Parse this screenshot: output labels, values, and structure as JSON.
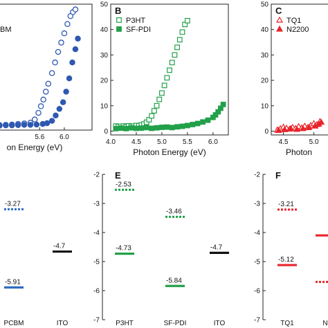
{
  "chart_data": [
    {
      "id": "A",
      "type": "scatter",
      "panel_label": "",
      "xlabel": "on Energy (eV)",
      "ylabel": "",
      "xlim": [
        4.9,
        6.45
      ],
      "ylim": [
        -1.5,
        46
      ],
      "xticks": [
        "5.6",
        "6.0"
      ],
      "xtick_values": [
        5.6,
        6.0
      ],
      "legend": [
        "BM"
      ],
      "series": [
        {
          "marker": "open-circle",
          "color": "#2f59b0",
          "points": [
            [
              4.95,
              0.4
            ],
            [
              5.05,
              0.5
            ],
            [
              5.15,
              0.6
            ],
            [
              5.25,
              0.8
            ],
            [
              5.35,
              1.0
            ],
            [
              5.45,
              1.3
            ],
            [
              5.52,
              2.5
            ],
            [
              5.58,
              5
            ],
            [
              5.62,
              7.5
            ],
            [
              5.66,
              10
            ],
            [
              5.7,
              13
            ],
            [
              5.74,
              16
            ],
            [
              5.8,
              20
            ],
            [
              5.85,
              24
            ],
            [
              5.9,
              28
            ],
            [
              5.95,
              31.5
            ],
            [
              6.0,
              35
            ],
            [
              6.05,
              38.5
            ],
            [
              6.1,
              41.5
            ],
            [
              6.14,
              43
            ],
            [
              6.18,
              44
            ]
          ]
        },
        {
          "marker": "filled-circle",
          "color": "#2f59b0",
          "points": [
            [
              4.95,
              0.2
            ],
            [
              5.05,
              0.3
            ],
            [
              5.15,
              0.3
            ],
            [
              5.25,
              0.4
            ],
            [
              5.35,
              0.5
            ],
            [
              5.45,
              0.5
            ],
            [
              5.55,
              0.6
            ],
            [
              5.65,
              0.8
            ],
            [
              5.72,
              1.1
            ],
            [
              5.8,
              2
            ],
            [
              5.86,
              4
            ],
            [
              5.92,
              6.5
            ],
            [
              5.98,
              9
            ],
            [
              6.03,
              13
            ],
            [
              6.08,
              18
            ],
            [
              6.13,
              24
            ],
            [
              6.18,
              29
            ],
            [
              6.22,
              33
            ]
          ]
        }
      ]
    },
    {
      "id": "B",
      "type": "scatter",
      "panel_label": "B",
      "xlabel": "Photon Energy (eV)",
      "ylabel": "",
      "xlim": [
        4.0,
        6.3
      ],
      "ylim": [
        -1.5,
        50
      ],
      "xticks": [
        "4.0",
        "4.5",
        "5.0",
        "5.5",
        "6.0"
      ],
      "xtick_values": [
        4.0,
        4.5,
        5.0,
        5.5,
        6.0
      ],
      "yticks": [
        "0",
        "10",
        "20",
        "30",
        "40",
        "50"
      ],
      "ytick_values": [
        0,
        10,
        20,
        30,
        40,
        50
      ],
      "legend": [
        "P3HT",
        "SF-PDI"
      ],
      "series": [
        {
          "name": "P3HT",
          "marker": "open-square",
          "color": "#22a04a",
          "points": [
            [
              4.1,
              2
            ],
            [
              4.15,
              1.8
            ],
            [
              4.2,
              1.9
            ],
            [
              4.25,
              2
            ],
            [
              4.3,
              1.7
            ],
            [
              4.35,
              2.1
            ],
            [
              4.4,
              1.9
            ],
            [
              4.45,
              2
            ],
            [
              4.5,
              2.2
            ],
            [
              4.55,
              2.1
            ],
            [
              4.6,
              2.4
            ],
            [
              4.65,
              2.8
            ],
            [
              4.7,
              3.5
            ],
            [
              4.75,
              4.5
            ],
            [
              4.8,
              6
            ],
            [
              4.85,
              8
            ],
            [
              4.9,
              10
            ],
            [
              4.95,
              12.5
            ],
            [
              5.0,
              15
            ],
            [
              5.05,
              18
            ],
            [
              5.1,
              21
            ],
            [
              5.15,
              24
            ],
            [
              5.2,
              27
            ],
            [
              5.25,
              30
            ],
            [
              5.3,
              33
            ],
            [
              5.35,
              36
            ],
            [
              5.4,
              39
            ],
            [
              5.45,
              42
            ],
            [
              5.5,
              43.5
            ]
          ]
        },
        {
          "name": "SF-PDI",
          "marker": "filled-square",
          "color": "#22a04a",
          "points": [
            [
              4.1,
              1
            ],
            [
              4.2,
              1.2
            ],
            [
              4.3,
              1
            ],
            [
              4.4,
              1.3
            ],
            [
              4.5,
              1.1
            ],
            [
              4.6,
              1.2
            ],
            [
              4.7,
              1.4
            ],
            [
              4.8,
              1.1
            ],
            [
              4.9,
              1.3
            ],
            [
              5.0,
              1.5
            ],
            [
              5.1,
              1.6
            ],
            [
              5.2,
              1.4
            ],
            [
              5.3,
              1.7
            ],
            [
              5.4,
              1.9
            ],
            [
              5.5,
              2.2
            ],
            [
              5.6,
              2.6
            ],
            [
              5.7,
              3
            ],
            [
              5.8,
              3.6
            ],
            [
              5.9,
              4.3
            ],
            [
              6.0,
              5.4
            ],
            [
              6.05,
              6.4
            ],
            [
              6.1,
              7.6
            ],
            [
              6.15,
              9
            ],
            [
              6.2,
              10.5
            ]
          ]
        }
      ]
    },
    {
      "id": "C",
      "type": "scatter",
      "panel_label": "C",
      "xlabel": "Photon",
      "ylabel": "",
      "xlim": [
        4.3,
        5.3
      ],
      "ylim": [
        -1.5,
        50
      ],
      "xticks": [
        "4.5",
        "5.0"
      ],
      "xtick_values": [
        4.5,
        5.0
      ],
      "yticks": [
        "0",
        "10",
        "20",
        "30",
        "40",
        "50"
      ],
      "ytick_values": [
        0,
        10,
        20,
        30,
        40,
        50
      ],
      "legend": [
        "TQ1",
        "N2200"
      ],
      "series": [
        {
          "name": "TQ1",
          "marker": "open-triangle",
          "color": "#e8242b",
          "points": [
            [
              4.4,
              0.5
            ],
            [
              4.45,
              1
            ],
            [
              4.5,
              1.6
            ],
            [
              4.55,
              1.2
            ],
            [
              4.6,
              0.8
            ],
            [
              4.65,
              1.5
            ],
            [
              4.7,
              1.1
            ],
            [
              4.75,
              1.8
            ],
            [
              4.8,
              1.3
            ],
            [
              4.85,
              2
            ],
            [
              4.9,
              1.4
            ],
            [
              4.95,
              2.3
            ],
            [
              5.0,
              3
            ],
            [
              5.05,
              2.6
            ],
            [
              5.1,
              3.8
            ]
          ]
        },
        {
          "name": "N2200",
          "marker": "filled-triangle",
          "color": "#e8242b",
          "points": [
            [
              4.42,
              0.3
            ],
            [
              4.52,
              0.6
            ],
            [
              4.62,
              1.0
            ],
            [
              4.72,
              0.7
            ],
            [
              4.82,
              1.0
            ],
            [
              4.92,
              1.5
            ],
            [
              5.02,
              2
            ],
            [
              5.08,
              2.8
            ],
            [
              5.12,
              3.5
            ]
          ]
        }
      ]
    },
    {
      "id": "D",
      "type": "energy-levels",
      "panel_label": "",
      "ylim": [
        -7,
        -2
      ],
      "categories": [
        "PCBM",
        "ITO"
      ],
      "levels": [
        {
          "category": 0,
          "value": -3.27,
          "label": "-3.27",
          "style": "dotted",
          "color": "#2f6cc0"
        },
        {
          "category": 0,
          "value": -5.91,
          "label": "-5.91",
          "style": "solid",
          "color": "#2f6cc0"
        },
        {
          "category": 1,
          "value": -4.7,
          "label": "-4.7",
          "style": "solid",
          "color": "#111111"
        }
      ]
    },
    {
      "id": "E",
      "type": "energy-levels",
      "panel_label": "E",
      "ylim": [
        -7,
        -2
      ],
      "yticks": [
        "-2",
        "-3",
        "-4",
        "-5",
        "-6",
        "-7"
      ],
      "ytick_values": [
        -2,
        -3,
        -4,
        -5,
        -6,
        -7
      ],
      "categories": [
        "P3HT",
        "SF-PDI",
        "ITO"
      ],
      "levels": [
        {
          "category": 0,
          "value": -2.53,
          "label": "-2.53",
          "style": "dotted",
          "color": "#22a04a"
        },
        {
          "category": 0,
          "value": -4.73,
          "label": "-4.73",
          "style": "solid",
          "color": "#22a04a"
        },
        {
          "category": 1,
          "value": -3.46,
          "label": "-3.46",
          "style": "dotted",
          "color": "#22a04a"
        },
        {
          "category": 1,
          "value": -5.84,
          "label": "-5.84",
          "style": "solid",
          "color": "#22a04a"
        },
        {
          "category": 2,
          "value": -4.7,
          "label": "-4.7",
          "style": "solid",
          "color": "#111111"
        }
      ]
    },
    {
      "id": "F",
      "type": "energy-levels",
      "panel_label": "F",
      "ylim": [
        -7,
        -2
      ],
      "yticks": [
        "-2",
        "-3",
        "-4",
        "-5",
        "-6",
        "-7"
      ],
      "ytick_values": [
        -2,
        -3,
        -4,
        -5,
        -6,
        -7
      ],
      "categories": [
        "TQ1",
        "N"
      ],
      "levels": [
        {
          "category": 0,
          "value": -3.21,
          "label": "-3.21",
          "style": "dotted",
          "color": "#e8242b"
        },
        {
          "category": 0,
          "value": -5.12,
          "label": "-5.12",
          "style": "solid",
          "color": "#e8242b"
        },
        {
          "category": 1,
          "value": -4.1,
          "label": "",
          "style": "solid",
          "color": "#e8242b"
        },
        {
          "category": 1,
          "value": -5.7,
          "label": "",
          "style": "dotted",
          "color": "#e8242b"
        }
      ]
    }
  ]
}
